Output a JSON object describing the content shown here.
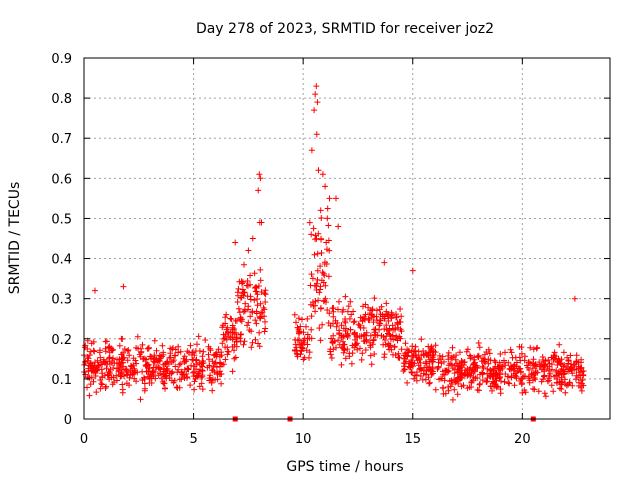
{
  "chart_data": {
    "type": "scatter",
    "title": "Day 278 of 2023, SRMTID for receiver joz2",
    "xlabel": "GPS time / hours",
    "ylabel": "SRMTID / TECUs",
    "xlim": [
      0,
      24
    ],
    "ylim": [
      0,
      0.9
    ],
    "xticks": [
      0,
      5,
      10,
      15,
      20
    ],
    "yticks": [
      0,
      0.1,
      0.2,
      0.3,
      0.4,
      0.5,
      0.6,
      0.7,
      0.8,
      0.9
    ],
    "xtick_labels": [
      "0",
      "5",
      "10",
      "15",
      "20"
    ],
    "ytick_labels": [
      "0",
      "0.1",
      "0.2",
      "0.3",
      "0.4",
      "0.5",
      "0.6",
      "0.7",
      "0.8",
      "0.9"
    ],
    "grid": true,
    "marker": "plus",
    "marker_color": "#ff0000",
    "segments": [
      {
        "x_start": 0.0,
        "x_end": 6.3,
        "base": 0.13,
        "spread": 0.05
      },
      {
        "x_start": 6.3,
        "x_end": 7.0,
        "base": 0.2,
        "spread": 0.06
      },
      {
        "x_start": 7.0,
        "x_end": 8.3,
        "base": 0.28,
        "spread": 0.09
      },
      {
        "x_start": 9.6,
        "x_end": 10.3,
        "base": 0.19,
        "spread": 0.06
      },
      {
        "x_start": 10.3,
        "x_end": 11.2,
        "base": 0.33,
        "spread": 0.14
      },
      {
        "x_start": 11.2,
        "x_end": 14.5,
        "base": 0.22,
        "spread": 0.07
      },
      {
        "x_start": 14.5,
        "x_end": 16.3,
        "base": 0.14,
        "spread": 0.05
      },
      {
        "x_start": 16.3,
        "x_end": 22.8,
        "base": 0.12,
        "spread": 0.05
      }
    ],
    "peak_points": [
      {
        "x": 8.0,
        "y": 0.61
      },
      {
        "x": 8.05,
        "y": 0.6
      },
      {
        "x": 7.95,
        "y": 0.57
      },
      {
        "x": 8.1,
        "y": 0.49
      },
      {
        "x": 8.02,
        "y": 0.49
      },
      {
        "x": 10.6,
        "y": 0.83
      },
      {
        "x": 10.55,
        "y": 0.81
      },
      {
        "x": 10.65,
        "y": 0.79
      },
      {
        "x": 10.5,
        "y": 0.77
      },
      {
        "x": 10.62,
        "y": 0.71
      },
      {
        "x": 10.4,
        "y": 0.67
      },
      {
        "x": 10.7,
        "y": 0.62
      },
      {
        "x": 10.9,
        "y": 0.61
      },
      {
        "x": 11.0,
        "y": 0.58
      },
      {
        "x": 11.2,
        "y": 0.55
      },
      {
        "x": 10.8,
        "y": 0.52
      },
      {
        "x": 11.1,
        "y": 0.5
      },
      {
        "x": 11.5,
        "y": 0.55
      },
      {
        "x": 11.6,
        "y": 0.48
      },
      {
        "x": 11.05,
        "y": 0.44
      },
      {
        "x": 6.9,
        "y": 0.44
      },
      {
        "x": 7.5,
        "y": 0.42
      },
      {
        "x": 7.7,
        "y": 0.45
      },
      {
        "x": 13.7,
        "y": 0.39
      },
      {
        "x": 15.0,
        "y": 0.37
      },
      {
        "x": 22.4,
        "y": 0.3
      },
      {
        "x": 1.8,
        "y": 0.33
      },
      {
        "x": 0.5,
        "y": 0.32
      }
    ],
    "zero_markers_x": [
      6.9,
      9.4,
      20.5
    ]
  }
}
